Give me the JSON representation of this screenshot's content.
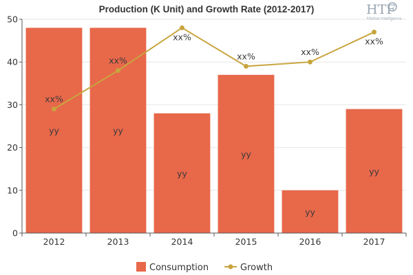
{
  "logo": {
    "mark": "HTF",
    "tagline": "Market Intelligence"
  },
  "colors": {
    "bar": "#e8684a",
    "line": "#c9a43e",
    "grid": "#e6e6e6",
    "axis": "#555555",
    "text": "#333333"
  },
  "chart_data": {
    "type": "bar",
    "title": "Production (K Unit) and Growth Rate (2012-2017)",
    "categories": [
      "2012",
      "2013",
      "2014",
      "2015",
      "2016",
      "2017"
    ],
    "ylim": [
      0,
      50
    ],
    "yticks": [
      0,
      10,
      20,
      30,
      40,
      50
    ],
    "grid": true,
    "legend_position": "bottom",
    "series": [
      {
        "name": "Consumption",
        "type": "bar",
        "values": [
          48,
          48,
          28,
          37,
          10,
          29
        ],
        "labels": [
          "yy",
          "yy",
          "yy",
          "yy",
          "yy",
          "yy"
        ]
      },
      {
        "name": "Growth",
        "type": "line",
        "values": [
          29,
          38,
          48,
          39,
          40,
          47
        ],
        "labels": [
          "xx%",
          "xx%",
          "xx%",
          "xx%",
          "xx%",
          "xx%"
        ]
      }
    ]
  }
}
